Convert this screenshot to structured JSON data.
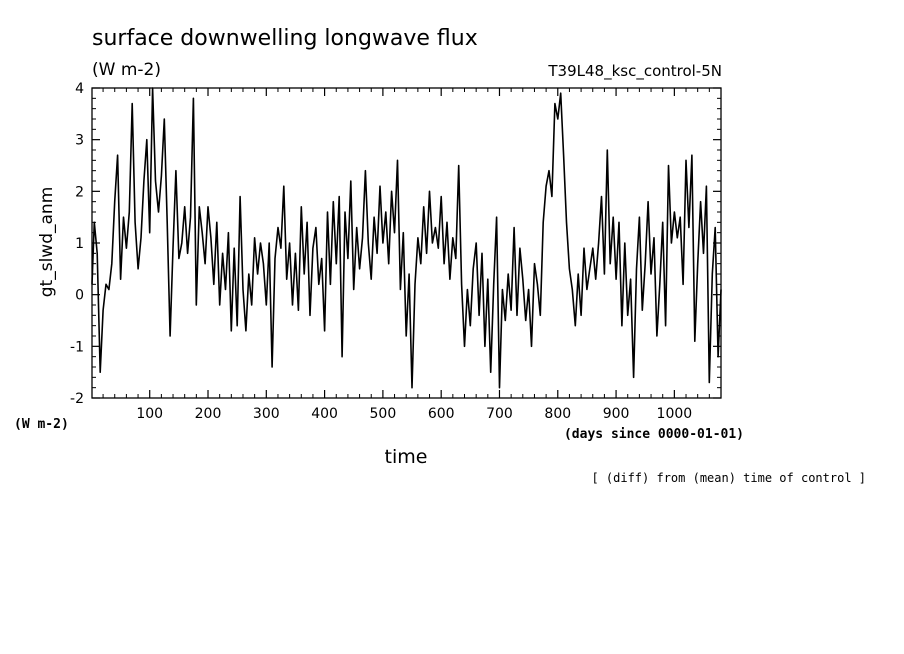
{
  "header": {
    "title": "surface downwelling longwave flux",
    "units": "(W m-2)",
    "run_name": "T39L48_ksc_control-5N",
    "ylabel": "gt_slwd_anm",
    "y_units": "(W m-2)",
    "xlabel": "time",
    "x_units": "(days since 0000-01-01)",
    "note": "[ (diff) from (mean) time of control ]"
  },
  "chart_data": {
    "type": "line",
    "xlim": [
      1,
      1080
    ],
    "ylim": [
      -2,
      4
    ],
    "x_ticks": [
      100,
      200,
      300,
      400,
      500,
      600,
      700,
      800,
      900,
      1000
    ],
    "y_ticks": [
      -2,
      -1,
      0,
      1,
      2,
      3,
      4
    ],
    "grid": false,
    "series": [
      {
        "points": [
          [
            1,
            0.2
          ],
          [
            5,
            1.4
          ],
          [
            10,
            0.8
          ],
          [
            15,
            -1.5
          ],
          [
            20,
            -0.3
          ],
          [
            25,
            0.2
          ],
          [
            30,
            0.1
          ],
          [
            35,
            0.6
          ],
          [
            40,
            1.8
          ],
          [
            45,
            2.7
          ],
          [
            50,
            0.3
          ],
          [
            55,
            1.5
          ],
          [
            60,
            0.9
          ],
          [
            65,
            1.6
          ],
          [
            70,
            3.7
          ],
          [
            75,
            1.4
          ],
          [
            80,
            0.5
          ],
          [
            85,
            1.1
          ],
          [
            90,
            2.2
          ],
          [
            95,
            3.0
          ],
          [
            100,
            1.2
          ],
          [
            105,
            4.0
          ],
          [
            110,
            2.2
          ],
          [
            115,
            1.6
          ],
          [
            120,
            2.3
          ],
          [
            125,
            3.4
          ],
          [
            130,
            1.4
          ],
          [
            135,
            -0.8
          ],
          [
            140,
            0.9
          ],
          [
            145,
            2.4
          ],
          [
            150,
            0.7
          ],
          [
            155,
            1.0
          ],
          [
            160,
            1.7
          ],
          [
            165,
            0.8
          ],
          [
            170,
            1.5
          ],
          [
            175,
            3.8
          ],
          [
            180,
            -0.2
          ],
          [
            185,
            1.7
          ],
          [
            190,
            1.2
          ],
          [
            195,
            0.6
          ],
          [
            200,
            1.7
          ],
          [
            205,
            1.1
          ],
          [
            210,
            0.2
          ],
          [
            215,
            1.4
          ],
          [
            220,
            -0.2
          ],
          [
            225,
            0.8
          ],
          [
            230,
            0.1
          ],
          [
            235,
            1.2
          ],
          [
            240,
            -0.7
          ],
          [
            245,
            0.9
          ],
          [
            250,
            -0.6
          ],
          [
            255,
            1.9
          ],
          [
            260,
            0.1
          ],
          [
            265,
            -0.7
          ],
          [
            270,
            0.4
          ],
          [
            275,
            -0.2
          ],
          [
            280,
            1.1
          ],
          [
            285,
            0.4
          ],
          [
            290,
            1.0
          ],
          [
            295,
            0.6
          ],
          [
            300,
            -0.2
          ],
          [
            305,
            1.0
          ],
          [
            310,
            -1.4
          ],
          [
            315,
            0.7
          ],
          [
            320,
            1.3
          ],
          [
            325,
            0.9
          ],
          [
            330,
            2.1
          ],
          [
            335,
            0.3
          ],
          [
            340,
            1.0
          ],
          [
            345,
            -0.2
          ],
          [
            350,
            0.8
          ],
          [
            355,
            -0.3
          ],
          [
            360,
            1.7
          ],
          [
            365,
            0.4
          ],
          [
            370,
            1.4
          ],
          [
            375,
            -0.4
          ],
          [
            380,
            0.9
          ],
          [
            385,
            1.3
          ],
          [
            390,
            0.2
          ],
          [
            395,
            0.7
          ],
          [
            400,
            -0.7
          ],
          [
            405,
            1.6
          ],
          [
            410,
            0.2
          ],
          [
            415,
            1.8
          ],
          [
            420,
            0.6
          ],
          [
            425,
            1.9
          ],
          [
            430,
            -1.2
          ],
          [
            435,
            1.6
          ],
          [
            440,
            0.7
          ],
          [
            445,
            2.2
          ],
          [
            450,
            0.1
          ],
          [
            455,
            1.3
          ],
          [
            460,
            0.5
          ],
          [
            465,
            1.1
          ],
          [
            470,
            2.4
          ],
          [
            475,
            1.0
          ],
          [
            480,
            0.3
          ],
          [
            485,
            1.5
          ],
          [
            490,
            0.8
          ],
          [
            495,
            2.1
          ],
          [
            500,
            1.0
          ],
          [
            505,
            1.6
          ],
          [
            510,
            0.6
          ],
          [
            515,
            2.0
          ],
          [
            520,
            1.2
          ],
          [
            525,
            2.6
          ],
          [
            530,
            0.1
          ],
          [
            535,
            1.2
          ],
          [
            540,
            -0.8
          ],
          [
            545,
            0.4
          ],
          [
            550,
            -1.8
          ],
          [
            555,
            0.2
          ],
          [
            560,
            1.1
          ],
          [
            565,
            0.6
          ],
          [
            570,
            1.7
          ],
          [
            575,
            0.8
          ],
          [
            580,
            2.0
          ],
          [
            585,
            1.0
          ],
          [
            590,
            1.3
          ],
          [
            595,
            0.9
          ],
          [
            600,
            1.9
          ],
          [
            605,
            0.6
          ],
          [
            610,
            1.4
          ],
          [
            615,
            0.3
          ],
          [
            620,
            1.1
          ],
          [
            625,
            0.7
          ],
          [
            630,
            2.5
          ],
          [
            635,
            0.2
          ],
          [
            640,
            -1.0
          ],
          [
            645,
            0.1
          ],
          [
            650,
            -0.6
          ],
          [
            655,
            0.5
          ],
          [
            660,
            1.0
          ],
          [
            665,
            -0.4
          ],
          [
            670,
            0.8
          ],
          [
            675,
            -1.0
          ],
          [
            680,
            0.3
          ],
          [
            685,
            -1.5
          ],
          [
            690,
            0.2
          ],
          [
            695,
            1.5
          ],
          [
            700,
            -1.8
          ],
          [
            705,
            0.1
          ],
          [
            710,
            -0.5
          ],
          [
            715,
            0.4
          ],
          [
            720,
            -0.3
          ],
          [
            725,
            1.3
          ],
          [
            730,
            -0.4
          ],
          [
            735,
            0.9
          ],
          [
            740,
            0.3
          ],
          [
            745,
            -0.5
          ],
          [
            750,
            0.1
          ],
          [
            755,
            -1.0
          ],
          [
            760,
            0.6
          ],
          [
            765,
            0.2
          ],
          [
            770,
            -0.4
          ],
          [
            775,
            1.4
          ],
          [
            780,
            2.1
          ],
          [
            785,
            2.4
          ],
          [
            790,
            1.9
          ],
          [
            795,
            3.7
          ],
          [
            800,
            3.4
          ],
          [
            805,
            3.9
          ],
          [
            810,
            2.7
          ],
          [
            815,
            1.4
          ],
          [
            820,
            0.5
          ],
          [
            825,
            0.1
          ],
          [
            830,
            -0.6
          ],
          [
            835,
            0.4
          ],
          [
            840,
            -0.4
          ],
          [
            845,
            0.9
          ],
          [
            850,
            0.1
          ],
          [
            855,
            0.5
          ],
          [
            860,
            0.9
          ],
          [
            865,
            0.3
          ],
          [
            870,
            1.0
          ],
          [
            875,
            1.9
          ],
          [
            880,
            0.4
          ],
          [
            885,
            2.8
          ],
          [
            890,
            0.6
          ],
          [
            895,
            1.5
          ],
          [
            900,
            0.3
          ],
          [
            905,
            1.4
          ],
          [
            910,
            -0.6
          ],
          [
            915,
            1.0
          ],
          [
            920,
            -0.4
          ],
          [
            925,
            0.3
          ],
          [
            930,
            -1.6
          ],
          [
            935,
            0.5
          ],
          [
            940,
            1.5
          ],
          [
            945,
            -0.3
          ],
          [
            950,
            0.6
          ],
          [
            955,
            1.8
          ],
          [
            960,
            0.4
          ],
          [
            965,
            1.1
          ],
          [
            970,
            -0.8
          ],
          [
            975,
            0.2
          ],
          [
            980,
            1.4
          ],
          [
            985,
            -0.6
          ],
          [
            990,
            2.5
          ],
          [
            995,
            1.0
          ],
          [
            1000,
            1.6
          ],
          [
            1005,
            1.1
          ],
          [
            1010,
            1.5
          ],
          [
            1015,
            0.2
          ],
          [
            1020,
            2.6
          ],
          [
            1025,
            1.3
          ],
          [
            1030,
            2.7
          ],
          [
            1035,
            -0.9
          ],
          [
            1040,
            0.6
          ],
          [
            1045,
            1.8
          ],
          [
            1050,
            0.8
          ],
          [
            1055,
            2.1
          ],
          [
            1060,
            -1.7
          ],
          [
            1065,
            0.4
          ],
          [
            1070,
            1.3
          ],
          [
            1075,
            -1.2
          ],
          [
            1080,
            0.1
          ]
        ]
      }
    ]
  }
}
